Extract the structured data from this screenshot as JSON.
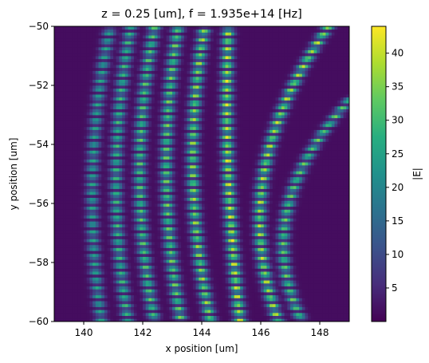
{
  "chart_data": {
    "type": "heatmap",
    "title": "z = 0.25 [um], f = 1.935e+14 [Hz]",
    "xlabel": "x position [um]",
    "ylabel": "y position [um]",
    "xlim": [
      139,
      149
    ],
    "ylim": [
      -60,
      -50
    ],
    "x_ticks": [
      140,
      142,
      144,
      146,
      148
    ],
    "x_tick_labels": [
      "140",
      "142",
      "144",
      "146",
      "148"
    ],
    "y_ticks": [
      -60,
      -58,
      -56,
      -54,
      -52,
      -50
    ],
    "y_tick_labels": [
      "−60",
      "−58",
      "−56",
      "−54",
      "−52",
      "−50"
    ],
    "colorbar": {
      "label": "|E|",
      "colormap": "viridis",
      "range": [
        0,
        44
      ],
      "ticks": [
        5,
        10,
        15,
        20,
        25,
        30,
        35,
        40
      ],
      "tick_labels": [
        "5",
        "10",
        "15",
        "20",
        "25",
        "30",
        "35",
        "40"
      ]
    },
    "field_pattern": {
      "description_of_structure": "curved field bands with periodic intensity fringes",
      "bands": [
        {
          "x_at_y_minus60": 140.6,
          "x_at_y_minus55": 140.3,
          "x_at_y_minus50": 140.9,
          "peak": 26
        },
        {
          "x_at_y_minus60": 141.5,
          "x_at_y_minus55": 141.1,
          "x_at_y_minus50": 141.6,
          "peak": 30
        },
        {
          "x_at_y_minus60": 142.4,
          "x_at_y_minus55": 141.9,
          "x_at_y_minus50": 142.4,
          "peak": 33
        },
        {
          "x_at_y_minus60": 143.3,
          "x_at_y_minus55": 142.8,
          "x_at_y_minus50": 143.2,
          "peak": 35
        },
        {
          "x_at_y_minus60": 144.3,
          "x_at_y_minus55": 143.7,
          "x_at_y_minus50": 144.1,
          "peak": 38
        },
        {
          "x_at_y_minus60": 145.3,
          "x_at_y_minus55": 144.9,
          "x_at_y_minus50": 144.9,
          "peak": 42
        },
        {
          "x_at_y_minus60": 146.6,
          "x_at_y_minus55": 146.1,
          "x_at_y_minus50": 148.3,
          "peak": 40
        },
        {
          "x_at_y_minus60": 147.4,
          "x_at_y_minus55": 147.3,
          "x_at_y_minus52.5": 149.0,
          "peak": 34
        }
      ],
      "fringe_period_um": 0.27,
      "band_width_um": 0.2
    }
  }
}
